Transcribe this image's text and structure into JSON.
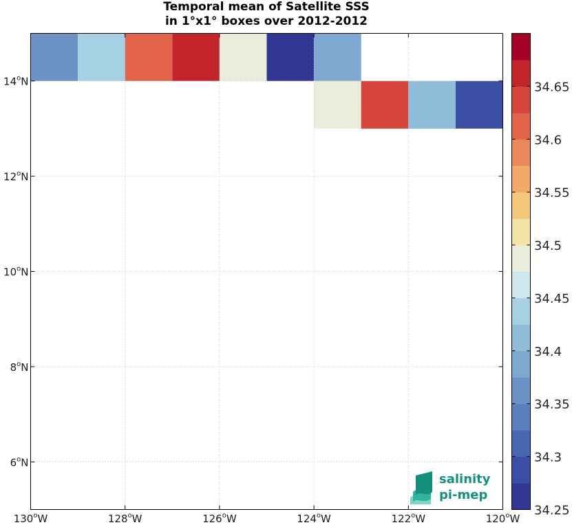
{
  "chart_data": {
    "type": "heatmap",
    "title": [
      "Temporal mean of Satellite SSS",
      "in 1°x1° boxes over 2012-2012"
    ],
    "xlim": [
      -130,
      -120
    ],
    "ylim": [
      5,
      15
    ],
    "x_ticks": [
      -130,
      -128,
      -126,
      -124,
      -122,
      -120
    ],
    "y_ticks": [
      6,
      8,
      10,
      12,
      14
    ],
    "x_tick_labels": [
      "130",
      "128",
      "126",
      "124",
      "122",
      "120"
    ],
    "x_tick_suffix": "W",
    "y_tick_labels": [
      "6",
      "8",
      "10",
      "12",
      "14"
    ],
    "y_tick_suffix": "N",
    "degree_symbol": "o",
    "grid": true,
    "cell_size_deg": 1,
    "cells": [
      {
        "lon": -130,
        "lat": 14,
        "value": 34.37
      },
      {
        "lon": -129,
        "lat": 14,
        "value": 34.44
      },
      {
        "lon": -128,
        "lat": 14,
        "value": 34.61
      },
      {
        "lon": -127,
        "lat": 14,
        "value": 34.67
      },
      {
        "lon": -126,
        "lat": 14,
        "value": 34.49
      },
      {
        "lon": -125,
        "lat": 14,
        "value": 34.27
      },
      {
        "lon": -124,
        "lat": 14,
        "value": 34.39
      },
      {
        "lon": -124,
        "lat": 13,
        "value": 34.49
      },
      {
        "lon": -123,
        "lat": 13,
        "value": 34.63
      },
      {
        "lon": -122,
        "lat": 13,
        "value": 34.42
      },
      {
        "lon": -121,
        "lat": 13,
        "value": 34.29
      }
    ],
    "colorbar": {
      "min": 34.25,
      "max": 34.7,
      "step": 0.025,
      "ticks": [
        34.25,
        34.3,
        34.35,
        34.4,
        34.45,
        34.5,
        34.55,
        34.6,
        34.65
      ],
      "tick_labels": [
        "34.25",
        "34.3",
        "34.35",
        "34.4",
        "34.45",
        "34.5",
        "34.55",
        "34.6",
        "34.65"
      ],
      "colors": [
        "#313695",
        "#3a4fa3",
        "#4766b0",
        "#5c7fbd",
        "#6d92c6",
        "#7ea8d0",
        "#8fbdd9",
        "#a6d0e3",
        "#cde7ee",
        "#e9edd9",
        "#f6e3a6",
        "#f5c77b",
        "#f2a868",
        "#ea8859",
        "#e0634a",
        "#d6453a",
        "#c4252b",
        "#a50026"
      ]
    }
  },
  "logo": {
    "line1": "salinity",
    "line2": "pi-mep"
  }
}
